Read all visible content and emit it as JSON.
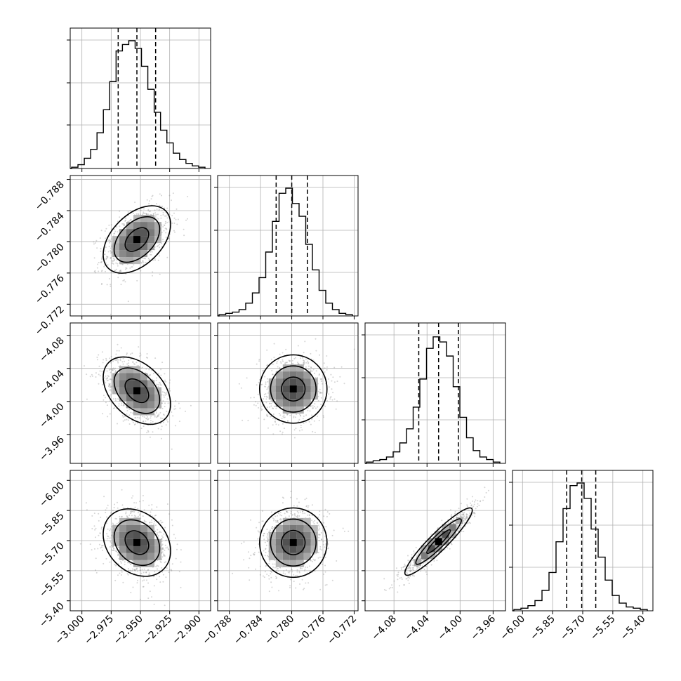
{
  "chart_data": {
    "type": "corner",
    "title": "",
    "grid": true,
    "parameters": [
      {
        "index": 0,
        "xticks": [
          "−3.000",
          "−2.975",
          "−2.950",
          "−2.925",
          "−2.900"
        ],
        "yticks": [],
        "range": [
          -3.01,
          -2.89
        ],
        "tickvalues": [
          -3.0,
          -2.975,
          -2.95,
          -2.925,
          -2.9
        ],
        "quantiles": [
          -2.969,
          -2.953,
          -2.937
        ]
      },
      {
        "index": 1,
        "xticks": [
          "−0.788",
          "−0.784",
          "−0.780",
          "−0.776",
          "−0.772"
        ],
        "yticks": [
          "−0.772",
          "−0.776",
          "−0.780",
          "−0.784",
          "−0.788"
        ],
        "range": [
          -0.7895,
          -0.7715
        ],
        "tickvalues": [
          -0.788,
          -0.784,
          -0.78,
          -0.776,
          -0.772
        ],
        "quantiles": [
          -0.782,
          -0.78,
          -0.778
        ]
      },
      {
        "index": 2,
        "xticks": [
          "−4.08",
          "−4.04",
          "−4.00",
          "−3.96"
        ],
        "yticks": [
          "−3.96",
          "−4.00",
          "−4.04",
          "−4.08"
        ],
        "range": [
          -4.115,
          -3.945
        ],
        "tickvalues": [
          -4.08,
          -4.04,
          -4.0,
          -3.96
        ],
        "quantiles": [
          -4.05,
          -4.026,
          -4.002
        ]
      },
      {
        "index": 3,
        "xticks": [
          "−6.00",
          "−5.85",
          "−5.70",
          "−5.55",
          "−5.40"
        ],
        "yticks": [
          "−5.40",
          "−5.55",
          "−5.70",
          "−5.85",
          "−6.00"
        ],
        "range": [
          -6.05,
          -5.35
        ],
        "tickvalues": [
          -6.0,
          -5.85,
          -5.7,
          -5.55,
          -5.4
        ],
        "quantiles": [
          -5.78,
          -5.705,
          -5.635
        ]
      }
    ],
    "histograms": [
      [
        0.01,
        0.03,
        0.08,
        0.15,
        0.28,
        0.46,
        0.68,
        0.92,
        0.97,
        1.0,
        0.94,
        0.8,
        0.62,
        0.44,
        0.3,
        0.2,
        0.12,
        0.07,
        0.04,
        0.02,
        0.01
      ],
      [
        0.01,
        0.02,
        0.03,
        0.05,
        0.1,
        0.18,
        0.3,
        0.5,
        0.74,
        0.96,
        1.0,
        0.88,
        0.78,
        0.56,
        0.36,
        0.2,
        0.1,
        0.05,
        0.02,
        0.01
      ],
      [
        0.01,
        0.02,
        0.03,
        0.05,
        0.09,
        0.16,
        0.27,
        0.44,
        0.66,
        0.9,
        0.99,
        0.95,
        0.84,
        0.6,
        0.36,
        0.2,
        0.1,
        0.05,
        0.03,
        0.01
      ],
      [
        0.01,
        0.02,
        0.04,
        0.08,
        0.16,
        0.3,
        0.54,
        0.8,
        0.98,
        1.0,
        0.88,
        0.64,
        0.42,
        0.24,
        0.12,
        0.06,
        0.03,
        0.02,
        0.01
      ]
    ],
    "correlations": [
      {
        "x": 0,
        "y": 1,
        "rho": 0.45,
        "peak": [
          -2.953,
          -0.7797
        ]
      },
      {
        "x": 0,
        "y": 2,
        "rho": -0.4,
        "peak": [
          -2.953,
          -4.027
        ]
      },
      {
        "x": 1,
        "y": 2,
        "rho": 0.05,
        "peak": [
          -0.7798,
          -4.025
        ]
      },
      {
        "x": 0,
        "y": 3,
        "rho": -0.25,
        "peak": [
          -2.953,
          -5.71
        ]
      },
      {
        "x": 1,
        "y": 3,
        "rho": 0.1,
        "peak": [
          -0.7798,
          -5.71
        ]
      },
      {
        "x": 2,
        "y": 3,
        "rho": 0.93,
        "peak": [
          -4.026,
          -5.705
        ]
      }
    ]
  }
}
